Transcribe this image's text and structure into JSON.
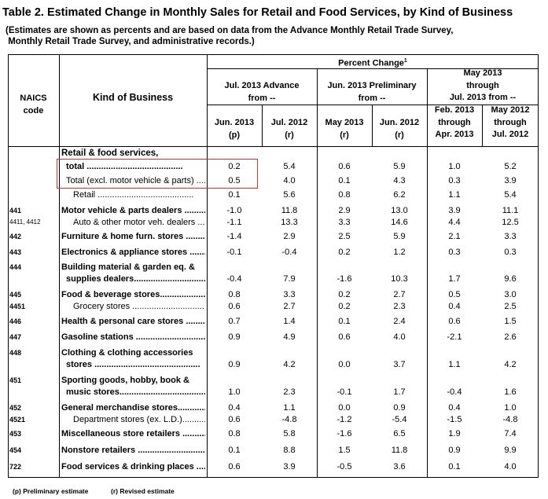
{
  "title": "Table 2.  Estimated Change in Monthly Sales for Retail and Food Services, by Kind of Business",
  "subtitle_line1": "(Estimates are shown as percents and are based on data from the Advance Monthly Retail Trade Survey,",
  "subtitle_line2": " Monthly Retail Trade Survey, and administrative records.)",
  "headers": {
    "percent_change": "Percent Change",
    "percent_change_sup": "1",
    "naics_l1": "NAICS",
    "naics_l2": "code",
    "kind": "Kind of Business",
    "group1_l1": "Jul. 2013 Advance",
    "group1_l2": "from --",
    "group2_l1": "Jun. 2013 Preliminary",
    "group2_l2": "from --",
    "group3_l1": "May 2013",
    "group3_l2": "through",
    "group3_l3": "Jul. 2013 from --",
    "col1_l1": "Jun. 2013",
    "col1_l2": "(p)",
    "col2_l1": "Jul. 2012",
    "col2_l2": "(r)",
    "col3_l1": "May 2013",
    "col3_l2": "(r)",
    "col4_l1": "Jun. 2012",
    "col4_l2": "(r)",
    "col5_l1": "Feb. 2013",
    "col5_l2": "through",
    "col5_l3": "Apr. 2013",
    "col6_l1": "May 2012",
    "col6_l2": "through",
    "col6_l3": "Jul. 2012"
  },
  "section_header": "Retail & food services,",
  "rows": [
    {
      "code": "",
      "label": "total ........................................",
      "bold": true,
      "indent": 1,
      "v": [
        "0.2",
        "5.4",
        "0.6",
        "5.9",
        "1.0",
        "5.2"
      ]
    },
    {
      "code": "",
      "label": "Total (excl. motor vehicle & parts) ..........",
      "bold": false,
      "indent": 1,
      "v": [
        "0.5",
        "4.0",
        "0.1",
        "4.3",
        "0.3",
        "3.9"
      ]
    },
    {
      "code": "",
      "label": "Retail ........................................",
      "bold": false,
      "indent": 2,
      "v": [
        "0.1",
        "5.6",
        "0.8",
        "6.2",
        "1.1",
        "5.4"
      ]
    },
    {
      "code": "441",
      "label": "Motor vehicle & parts dealers ....................",
      "bold": true,
      "indent": 0,
      "v": [
        "-1.0",
        "11.8",
        "2.9",
        "13.0",
        "3.9",
        "11.1"
      ]
    },
    {
      "code": "4411, 4412",
      "label": "Auto & other motor veh. dealers ..............",
      "bold": false,
      "indent": 2,
      "v": [
        "-1.1",
        "13.3",
        "3.3",
        "14.6",
        "4.4",
        "12.5"
      ]
    },
    {
      "code": "442",
      "label": "Furniture & home furn. stores ...................",
      "bold": true,
      "indent": 0,
      "v": [
        "-1.4",
        "2.9",
        "2.5",
        "5.9",
        "2.1",
        "3.3"
      ]
    },
    {
      "code": "443",
      "label": "Electronics & appliance stores ...................",
      "bold": true,
      "indent": 0,
      "v": [
        "-0.1",
        "-0.4",
        "0.2",
        "1.2",
        "0.3",
        "0.3"
      ]
    },
    {
      "code": "444",
      "label": "Building material & garden eq. &",
      "label2": "supplies dealers.................................",
      "bold": true,
      "indent": 0,
      "v": [
        "-0.4",
        "7.9",
        "-1.6",
        "10.3",
        "1.7",
        "9.6"
      ]
    },
    {
      "code": "445",
      "label": "Food & beverage stores.............................",
      "bold": true,
      "indent": 0,
      "v": [
        "0.8",
        "3.3",
        "0.2",
        "2.7",
        "0.5",
        "3.0"
      ]
    },
    {
      "code": "4451",
      "label": "Grocery stores ......................................",
      "bold": false,
      "indent": 2,
      "v": [
        "0.6",
        "2.7",
        "0.2",
        "2.3",
        "0.4",
        "2.5"
      ]
    },
    {
      "code": "446",
      "label": "Health & personal care stores ...................",
      "bold": true,
      "indent": 0,
      "v": [
        "0.7",
        "1.4",
        "0.1",
        "2.4",
        "0.6",
        "1.5"
      ]
    },
    {
      "code": "447",
      "label": "Gasoline stations ...................................",
      "bold": true,
      "indent": 0,
      "v": [
        "0.9",
        "4.9",
        "0.6",
        "4.0",
        "-2.1",
        "2.6"
      ]
    },
    {
      "code": "448",
      "label": "Clothing & clothing accessories",
      "label2": "stores ............................................",
      "bold": true,
      "indent": 0,
      "v": [
        "0.9",
        "4.2",
        "0.0",
        "3.7",
        "1.1",
        "4.2"
      ]
    },
    {
      "code": "451",
      "label": "Sporting goods, hobby, book &",
      "label2": "music stores.....................................",
      "bold": true,
      "indent": 0,
      "v": [
        "1.0",
        "2.3",
        "-0.1",
        "1.7",
        "-0.4",
        "1.6"
      ]
    },
    {
      "code": "452",
      "label": "General merchandise stores.......................",
      "bold": true,
      "indent": 0,
      "v": [
        "0.4",
        "1.1",
        "0.0",
        "0.9",
        "0.4",
        "1.0"
      ]
    },
    {
      "code": "4521",
      "label": "Department stores (ex. L.D.)...................",
      "bold": false,
      "indent": 2,
      "v": [
        "0.6",
        "-4.8",
        "-1.2",
        "-5.4",
        "-1.5",
        "-4.8"
      ]
    },
    {
      "code": "453",
      "label": "Miscellaneous store retailers ....................",
      "bold": true,
      "indent": 0,
      "v": [
        "0.8",
        "5.8",
        "-1.6",
        "6.5",
        "1.9",
        "7.4"
      ]
    },
    {
      "code": "454",
      "label": "Nonstore retailers ...................................",
      "bold": true,
      "indent": 0,
      "v": [
        "0.1",
        "8.8",
        "1.5",
        "11.8",
        "0.9",
        "9.9"
      ]
    },
    {
      "code": "722",
      "label": "Food services & drinking places ..................",
      "bold": true,
      "indent": 0,
      "v": [
        "0.6",
        "3.9",
        "-0.5",
        "3.6",
        "0.1",
        "4.0"
      ]
    }
  ],
  "footnotes": {
    "p": "(p)  Preliminary estimate",
    "r": "(r)  Revised estimate"
  }
}
